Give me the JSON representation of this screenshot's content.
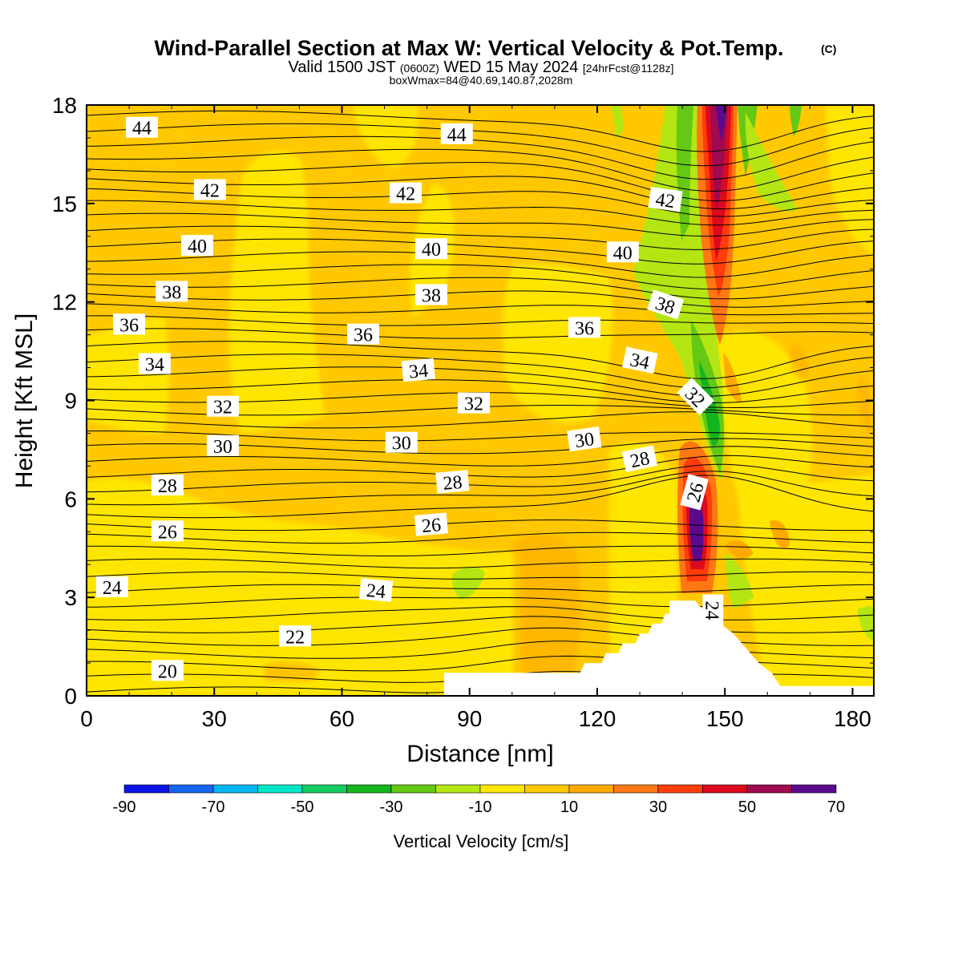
{
  "chart_data": {
    "type": "heatmap",
    "title": "Wind-Parallel Section at Max W: Vertical Velocity & Pot.Temp.",
    "title_mark": "(C)",
    "subtitle_parts": [
      "Valid 1500 JST",
      "(0600Z)",
      "WED 15 May 2024",
      "[24hrFcst@1128z]"
    ],
    "subtitle2": "boxWmax=84@40.69,140.87,2028m",
    "xlabel": "Distance [nm]",
    "ylabel": "Height [Kft MSL]",
    "xlim": [
      0,
      185
    ],
    "ylim": [
      0,
      18
    ],
    "x_ticks": [
      "0",
      "30",
      "60",
      "90",
      "120",
      "150",
      "180"
    ],
    "x_tick_values": [
      0,
      30,
      60,
      90,
      120,
      150,
      180
    ],
    "y_ticks": [
      "0",
      "3",
      "6",
      "9",
      "12",
      "15",
      "18"
    ],
    "y_tick_values": [
      0,
      3,
      6,
      9,
      12,
      15,
      18
    ],
    "colorbar": {
      "label": "Vertical Velocity [cm/s]",
      "bounds": [
        -90,
        -80,
        -70,
        -60,
        -50,
        -40,
        -30,
        -20,
        -10,
        0,
        10,
        20,
        30,
        40,
        50,
        60,
        70
      ],
      "tick_labels": [
        "-90",
        "-70",
        "-50",
        "-30",
        "-10",
        "10",
        "30",
        "50",
        "70"
      ],
      "tick_values": [
        -90,
        -70,
        -50,
        -30,
        -10,
        10,
        30,
        50,
        70
      ],
      "colors": [
        "#0a14e6",
        "#1464f0",
        "#00b4f0",
        "#00e6c8",
        "#14cc64",
        "#14b41e",
        "#64c814",
        "#b4e614",
        "#ffe600",
        "#ffc800",
        "#ffaa00",
        "#ff7814",
        "#ff3c0a",
        "#dc0a1e",
        "#a00a50",
        "#5a0a8c"
      ]
    },
    "contour_field": "Potential temperature (labels as printed)",
    "contour_labels": [
      {
        "text": "44",
        "x": 13,
        "z": 17.3,
        "angle": 0
      },
      {
        "text": "44",
        "x": 87,
        "z": 17.1,
        "angle": 0
      },
      {
        "text": "42",
        "x": 29,
        "z": 15.4,
        "angle": 0
      },
      {
        "text": "42",
        "x": 75,
        "z": 15.3,
        "angle": 0
      },
      {
        "text": "42",
        "x": 136,
        "z": 15.1,
        "angle": 8
      },
      {
        "text": "40",
        "x": 26,
        "z": 13.7,
        "angle": 0
      },
      {
        "text": "40",
        "x": 81,
        "z": 13.6,
        "angle": 0
      },
      {
        "text": "40",
        "x": 126,
        "z": 13.5,
        "angle": 0
      },
      {
        "text": "38",
        "x": 20,
        "z": 12.3,
        "angle": 0
      },
      {
        "text": "38",
        "x": 81,
        "z": 12.2,
        "angle": 0
      },
      {
        "text": "38",
        "x": 136,
        "z": 11.9,
        "angle": 18
      },
      {
        "text": "36",
        "x": 10,
        "z": 11.3,
        "angle": 0
      },
      {
        "text": "36",
        "x": 65,
        "z": 11.0,
        "angle": 0
      },
      {
        "text": "36",
        "x": 117,
        "z": 11.2,
        "angle": 0
      },
      {
        "text": "34",
        "x": 16,
        "z": 10.1,
        "angle": 0
      },
      {
        "text": "34",
        "x": 78,
        "z": 9.9,
        "angle": -5
      },
      {
        "text": "34",
        "x": 130,
        "z": 10.2,
        "angle": 12
      },
      {
        "text": "32",
        "x": 32,
        "z": 8.8,
        "angle": 0
      },
      {
        "text": "32",
        "x": 91,
        "z": 8.9,
        "angle": 0
      },
      {
        "text": "32",
        "x": 143,
        "z": 9.1,
        "angle": 45
      },
      {
        "text": "30",
        "x": 32,
        "z": 7.6,
        "angle": 0
      },
      {
        "text": "30",
        "x": 74,
        "z": 7.7,
        "angle": 0
      },
      {
        "text": "30",
        "x": 117,
        "z": 7.8,
        "angle": -8
      },
      {
        "text": "28",
        "x": 19,
        "z": 6.4,
        "angle": 0
      },
      {
        "text": "28",
        "x": 86,
        "z": 6.5,
        "angle": -5
      },
      {
        "text": "28",
        "x": 130,
        "z": 7.2,
        "angle": -12
      },
      {
        "text": "26",
        "x": 143,
        "z": 6.2,
        "angle": -75
      },
      {
        "text": "26",
        "x": 19,
        "z": 5.0,
        "angle": 0
      },
      {
        "text": "26",
        "x": 81,
        "z": 5.2,
        "angle": -5
      },
      {
        "text": "24",
        "x": 6,
        "z": 3.3,
        "angle": 0
      },
      {
        "text": "24",
        "x": 68,
        "z": 3.2,
        "angle": 5
      },
      {
        "text": "24",
        "x": 147,
        "z": 2.6,
        "angle": 90
      },
      {
        "text": "22",
        "x": 49,
        "z": 1.8,
        "angle": 0
      },
      {
        "text": "20",
        "x": 19,
        "z": 0.75,
        "angle": 0
      }
    ],
    "terrain_kft": [
      [
        0,
        0
      ],
      [
        84,
        0
      ],
      [
        84,
        0.7
      ],
      [
        116,
        0.7
      ],
      [
        117,
        1.0
      ],
      [
        121,
        1.0
      ],
      [
        122,
        1.3
      ],
      [
        125,
        1.3
      ],
      [
        126,
        1.6
      ],
      [
        129,
        1.6
      ],
      [
        130,
        1.9
      ],
      [
        132,
        1.9
      ],
      [
        133,
        2.2
      ],
      [
        135,
        2.2
      ],
      [
        136,
        2.5
      ],
      [
        137,
        2.5
      ],
      [
        137,
        2.9
      ],
      [
        143,
        2.9
      ],
      [
        145,
        2.6
      ],
      [
        149,
        2.2
      ],
      [
        152,
        1.9
      ],
      [
        154,
        1.6
      ],
      [
        156,
        1.3
      ],
      [
        158,
        1.0
      ],
      [
        161,
        0.7
      ],
      [
        163,
        0.3
      ],
      [
        165,
        0.3
      ],
      [
        185,
        0.3
      ]
    ]
  }
}
